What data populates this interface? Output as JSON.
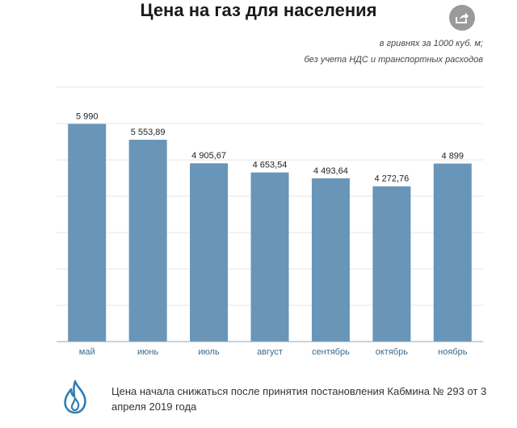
{
  "header": {
    "title": "Цена на газ для населения",
    "subtitle_line1": "в гривнях за 1000 куб. м;",
    "subtitle_line2": "без учета НДС и транспортных расходов"
  },
  "share_icon": "share-icon",
  "note": {
    "icon": "gas-flame-icon",
    "text": "Цена начала снижаться после принятия постановления Кабмина № 293 от 3 апреля 2019 года"
  },
  "colors": {
    "bar": "#6895b8",
    "grid": "#e4e4e4",
    "axis": "#9aa7b5",
    "tick_label": "#3a6a8e",
    "flame": "#2f7fb5"
  },
  "chart_data": {
    "type": "bar",
    "title": "Цена на газ для населения",
    "categories": [
      "май",
      "июнь",
      "июль",
      "август",
      "сентябрь",
      "октябрь",
      "ноябрь"
    ],
    "values": [
      5990,
      5553.89,
      4905.67,
      4653.54,
      4493.64,
      4272.76,
      4899
    ],
    "data_labels": [
      "5 990",
      "5 553,89",
      "4 905,67",
      "4 653,54",
      "4 493,64",
      "4 272,76",
      "4 899"
    ],
    "ylim": [
      0,
      7000
    ],
    "grid": true,
    "y_tick_labels_shown": false,
    "xlabel": "",
    "ylabel": ""
  }
}
